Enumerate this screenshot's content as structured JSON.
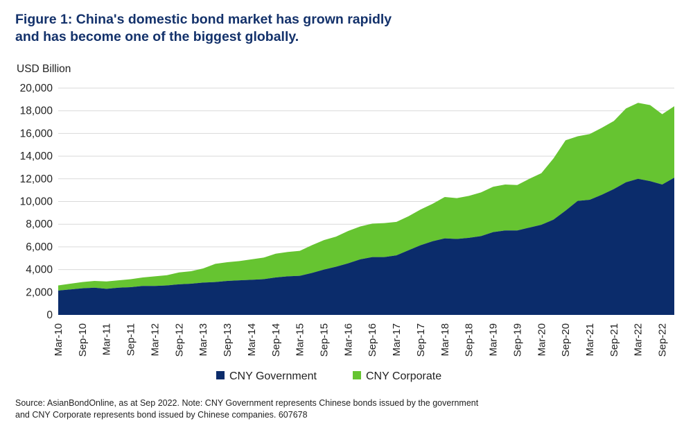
{
  "title_line1": "Figure 1: China's domestic bond market has grown rapidly",
  "title_line2": "and has become one of the biggest globally.",
  "source_line1": "Source: AsianBondOnline, as at Sep 2022. Note: CNY Government represents Chinese bonds issued by the government",
  "source_line2": "and CNY Corporate represents bond issued by Chinese companies. 607678",
  "colors": {
    "government": "#0b2c6b",
    "corporate": "#66c431",
    "title": "#14326b",
    "grid": "#d9d9d9",
    "text": "#222222"
  },
  "chart_data": {
    "type": "area",
    "stacked": true,
    "ylabel": "USD Billion",
    "ylim": [
      0,
      20000
    ],
    "yticks": [
      0,
      2000,
      4000,
      6000,
      8000,
      10000,
      12000,
      14000,
      16000,
      18000,
      20000
    ],
    "ytick_labels": [
      "0",
      "2,000",
      "4,000",
      "6,000",
      "8,000",
      "10,000",
      "12,000",
      "14,000",
      "16,000",
      "18,000",
      "20,000"
    ],
    "xtick_labels": [
      "Mar-10",
      "Sep-10",
      "Mar-11",
      "Sep-11",
      "Mar-12",
      "Sep-12",
      "Mar-13",
      "Sep-13",
      "Mar-14",
      "Sep-14",
      "Mar-15",
      "Sep-15",
      "Mar-16",
      "Sep-16",
      "Mar-17",
      "Sep-17",
      "Mar-18",
      "Sep-18",
      "Mar-19",
      "Sep-19",
      "Mar-20",
      "Sep-20",
      "Mar-21",
      "Sep-21",
      "Mar-22",
      "Sep-22"
    ],
    "x": [
      "Mar-10",
      "Jun-10",
      "Sep-10",
      "Dec-10",
      "Mar-11",
      "Jun-11",
      "Sep-11",
      "Dec-11",
      "Mar-12",
      "Jun-12",
      "Sep-12",
      "Dec-12",
      "Mar-13",
      "Jun-13",
      "Sep-13",
      "Dec-13",
      "Mar-14",
      "Jun-14",
      "Sep-14",
      "Dec-14",
      "Mar-15",
      "Jun-15",
      "Sep-15",
      "Dec-15",
      "Mar-16",
      "Jun-16",
      "Sep-16",
      "Dec-16",
      "Mar-17",
      "Jun-17",
      "Sep-17",
      "Dec-17",
      "Mar-18",
      "Jun-18",
      "Sep-18",
      "Dec-18",
      "Mar-19",
      "Jun-19",
      "Sep-19",
      "Dec-19",
      "Mar-20",
      "Jun-20",
      "Sep-20",
      "Dec-20",
      "Mar-21",
      "Jun-21",
      "Sep-21",
      "Dec-21",
      "Mar-22",
      "Jun-22",
      "Sep-22",
      "Dec-22"
    ],
    "series": [
      {
        "name": "CNY Government",
        "color": "#0b2c6b",
        "values": [
          2150,
          2250,
          2350,
          2400,
          2300,
          2400,
          2450,
          2550,
          2550,
          2600,
          2700,
          2750,
          2850,
          2900,
          3000,
          3050,
          3100,
          3150,
          3300,
          3400,
          3450,
          3700,
          4000,
          4250,
          4550,
          4900,
          5100,
          5100,
          5250,
          5700,
          6150,
          6500,
          6750,
          6700,
          6800,
          6950,
          7300,
          7450,
          7450,
          7700,
          7950,
          8400,
          9200,
          10050,
          10150,
          10600,
          11100,
          11700,
          12000,
          11800,
          11500,
          12100
        ]
      },
      {
        "name": "CNY Corporate",
        "color": "#66c431",
        "values": [
          450,
          500,
          550,
          600,
          650,
          650,
          700,
          750,
          850,
          900,
          1050,
          1100,
          1250,
          1600,
          1650,
          1700,
          1800,
          1900,
          2100,
          2150,
          2200,
          2450,
          2600,
          2650,
          2850,
          2900,
          2950,
          3000,
          2950,
          3000,
          3150,
          3300,
          3650,
          3600,
          3700,
          3850,
          4000,
          4050,
          4000,
          4300,
          4550,
          5400,
          6200,
          5700,
          5800,
          5900,
          6000,
          6500,
          6700,
          6700,
          6200,
          6300
        ]
      }
    ],
    "legend_position": "bottom-center",
    "grid": "horizontal"
  }
}
